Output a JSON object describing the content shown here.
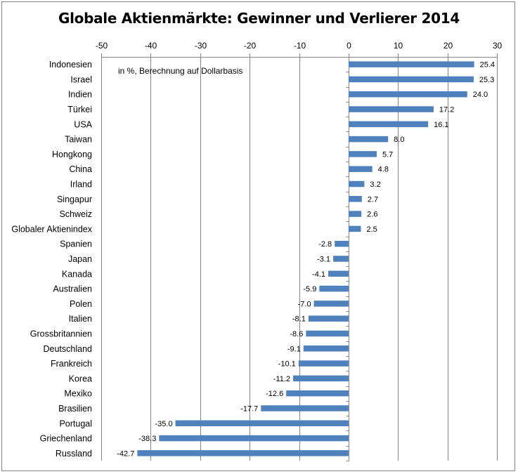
{
  "chart_data": {
    "type": "bar",
    "orientation": "horizontal",
    "title": "Globale Aktienmärkte: Gewinner und Verlierer 2014",
    "annotation": "in %, Berechnung auf Dollarbasis",
    "xlim": [
      -50,
      30
    ],
    "xticks": [
      -50,
      -40,
      -30,
      -20,
      -10,
      0,
      10,
      20,
      30
    ],
    "grid": true,
    "bar_color": "#4f81bd",
    "categories": [
      "Indonesien",
      "Israel",
      "Indien",
      "Türkei",
      "USA",
      "Taiwan",
      "Hongkong",
      "China",
      "Irland",
      "Singapur",
      "Schweiz",
      "Globaler Aktienindex",
      "Spanien",
      "Japan",
      "Kanada",
      "Australien",
      "Polen",
      "Italien",
      "Grossbritannien",
      "Deutschland",
      "Frankreich",
      "Korea",
      "Mexiko",
      "Brasilien",
      "Portugal",
      "Griechenland",
      "Russland"
    ],
    "values": [
      25.4,
      25.3,
      24.0,
      17.2,
      16.1,
      8.0,
      5.7,
      4.8,
      3.2,
      2.7,
      2.6,
      2.5,
      -2.8,
      -3.1,
      -4.1,
      -5.9,
      -7.0,
      -8.1,
      -8.6,
      -9.1,
      -10.1,
      -11.2,
      -12.6,
      -17.7,
      -35.0,
      -38.3,
      -42.7
    ],
    "value_labels": [
      "25.4",
      "25.3",
      "24.0",
      "17.2",
      "16.1",
      "8.0",
      "5.7",
      "4.8",
      "3.2",
      "2.7",
      "2.6",
      "2.5",
      "-2.8",
      "-3.1",
      "-4.1",
      "-5.9",
      "-7.0",
      "-8.1",
      "-8.6",
      "-9.1",
      "-10.1",
      "-11.2",
      "-12.6",
      "-17.7",
      "-35.0",
      "-38.3",
      "-42.7"
    ]
  }
}
